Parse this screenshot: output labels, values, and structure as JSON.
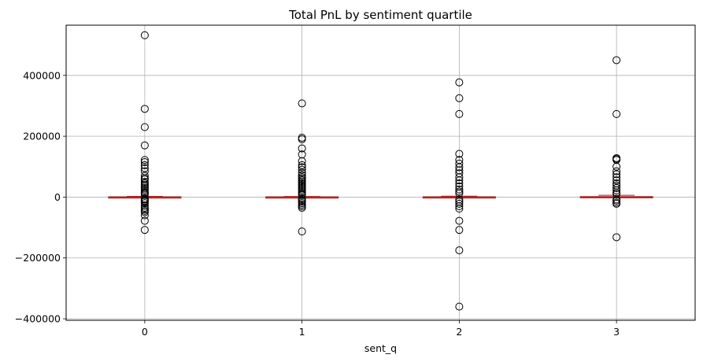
{
  "chart_data": {
    "type": "box",
    "title": "Total PnL by sentiment quartile",
    "xlabel": "sent_q",
    "ylabel": "",
    "categories": [
      "0",
      "1",
      "2",
      "3"
    ],
    "ylim": [
      -405000,
      565000
    ],
    "yticks": [
      -400000,
      -200000,
      0,
      200000,
      400000
    ],
    "ytick_labels": [
      "−400000",
      "−200000",
      "0",
      "200000",
      "400000"
    ],
    "grid": true,
    "colors": {
      "box": "#b22222",
      "whisker": "#b22222",
      "median": "#b22222",
      "flier": "#000000",
      "grid": "#b0b0b0"
    },
    "boxes": [
      {
        "category": "0",
        "whislo": -800,
        "q1": -300,
        "median": 0,
        "q3": 800,
        "whishi": 2500,
        "fliers": [
          532000,
          290000,
          230000,
          170000,
          122000,
          115000,
          105000,
          95000,
          85000,
          70000,
          62000,
          58000,
          50000,
          45000,
          40000,
          35000,
          30000,
          25000,
          20000,
          15000,
          12000,
          8000,
          -5000,
          -8000,
          -12000,
          -15000,
          -20000,
          -28000,
          -35000,
          -40000,
          -45000,
          -50000,
          -60000,
          -78000,
          -108000
        ]
      },
      {
        "category": "1",
        "whislo": -600,
        "q1": -200,
        "median": 0,
        "q3": 700,
        "whishi": 2200,
        "fliers": [
          308000,
          195000,
          190000,
          160000,
          140000,
          118000,
          105000,
          98000,
          90000,
          80000,
          72000,
          65000,
          60000,
          55000,
          50000,
          45000,
          40000,
          35000,
          30000,
          25000,
          20000,
          15000,
          10000,
          7000,
          -5000,
          -10000,
          -15000,
          -20000,
          -25000,
          -30000,
          -35000,
          -113000
        ]
      },
      {
        "category": "2",
        "whislo": -700,
        "q1": -300,
        "median": 0,
        "q3": 900,
        "whishi": 3000,
        "fliers": [
          377000,
          325000,
          273000,
          142000,
          122000,
          110000,
          98000,
          88000,
          78000,
          65000,
          55000,
          45000,
          35000,
          25000,
          18000,
          12000,
          -8000,
          -15000,
          -22000,
          -30000,
          -38000,
          -78000,
          -108000,
          -175000,
          -360000
        ]
      },
      {
        "category": "3",
        "whislo": -1000,
        "q1": -500,
        "median": 0,
        "q3": 1500,
        "whishi": 6000,
        "fliers": [
          450000,
          273000,
          128000,
          125000,
          122000,
          100000,
          85000,
          75000,
          65000,
          55000,
          45000,
          38000,
          30000,
          22000,
          15000,
          10000,
          -8000,
          -12000,
          -18000,
          -22000,
          -132000
        ]
      }
    ]
  }
}
